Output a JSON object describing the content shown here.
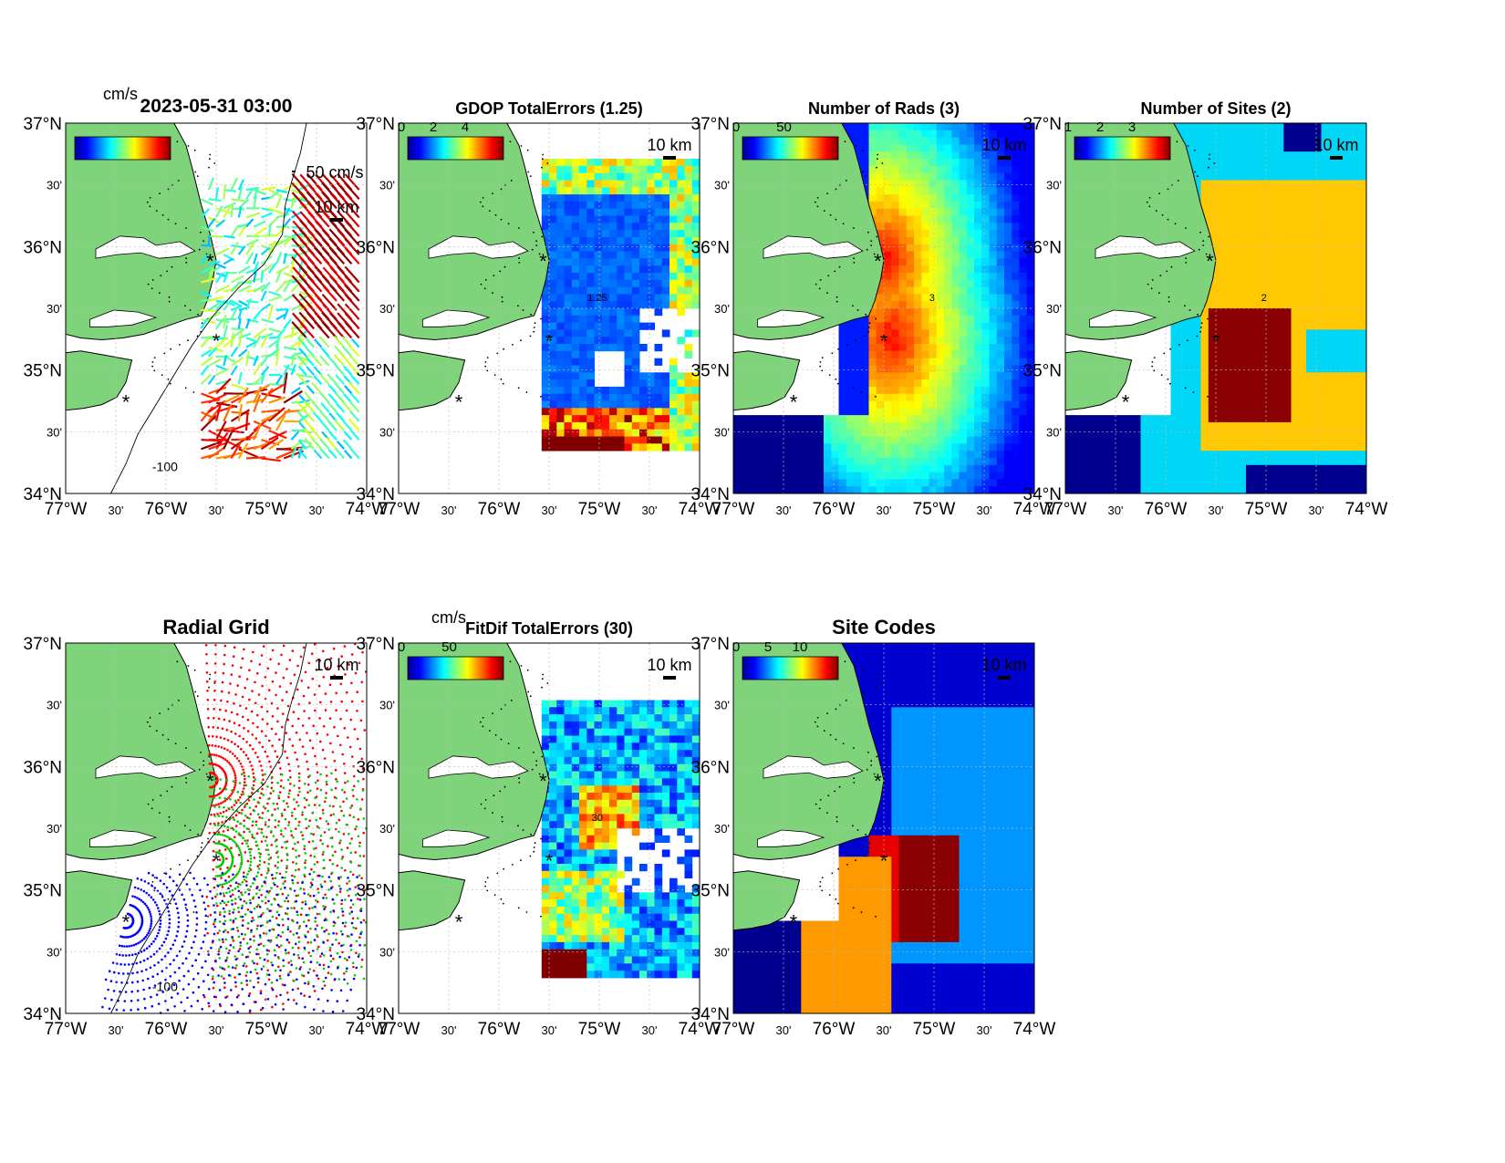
{
  "figure": {
    "datetime": "2023-05-31 03:00",
    "unit": "cm/s",
    "scale_arrow_label": "50 cm/s",
    "scale_bar_label": "10 km",
    "depth_contour_label": "-100",
    "lat_ticks": [
      "37°N",
      "30'",
      "36°N",
      "30'",
      "35°N",
      "30'",
      "34°N"
    ],
    "lon_ticks": [
      "77°W",
      "30'",
      "76°W",
      "30'",
      "75°W",
      "30'",
      "74°W"
    ],
    "land_color": "#7FD47B",
    "site_marker_color": "#FF0000",
    "colormap": "jet"
  },
  "panels": [
    {
      "id": "velocity",
      "title": "2023-05-31 03:00",
      "unit_label": "cm/s",
      "colorbar_ticks": [],
      "kind": "vectors"
    },
    {
      "id": "gdop",
      "title": "GDOP TotalErrors (1.25)",
      "colorbar_ticks": [
        "0",
        "2",
        "4"
      ],
      "contour_label": "1.25",
      "kind": "field"
    },
    {
      "id": "nrads",
      "title": "Number of Rads (3)",
      "colorbar_ticks": [
        "0",
        "50"
      ],
      "contour_label": "3",
      "kind": "field"
    },
    {
      "id": "nsites",
      "title": "Number of Sites (2)",
      "colorbar_ticks": [
        "1",
        "2",
        "3"
      ],
      "contour_label": "2",
      "kind": "field"
    },
    {
      "id": "radgrid",
      "title": "Radial Grid",
      "colorbar_ticks": [],
      "kind": "grid"
    },
    {
      "id": "fitdif",
      "title": "FitDif TotalErrors (30)",
      "unit_label": "cm/s",
      "colorbar_ticks": [
        "0",
        "50"
      ],
      "contour_label": "30",
      "kind": "field"
    },
    {
      "id": "sitecodes",
      "title": "Site Codes",
      "colorbar_ticks": [
        "0",
        "5",
        "10"
      ],
      "kind": "field"
    }
  ]
}
